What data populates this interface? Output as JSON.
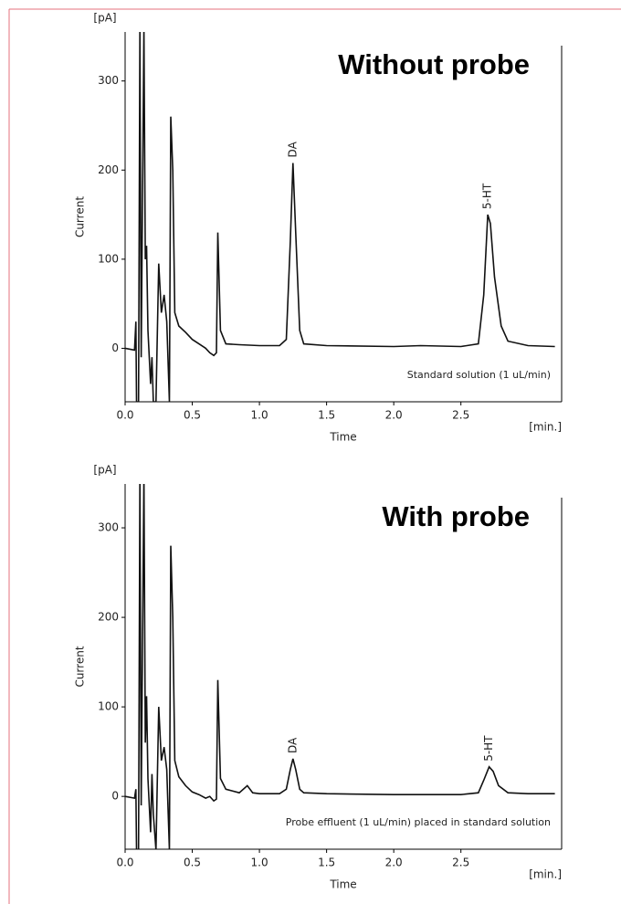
{
  "chart_data": [
    {
      "type": "line",
      "title": "Without probe",
      "annotation": "Standard solution (1 uL/min)",
      "ylabel": "Current",
      "yunit": "[pA]",
      "xlabel": "Time",
      "xunit": "[min.]",
      "color": "#111111",
      "xlim": [
        0,
        3.25
      ],
      "ylim": [
        -60,
        355
      ],
      "xticks": [
        {
          "value": 0,
          "label": "0.0"
        },
        0.5,
        {
          "value": 1,
          "label": "1.0"
        },
        1.5,
        {
          "value": 2,
          "label": "2.0"
        },
        2.5
      ],
      "yticks": [
        0,
        100,
        200,
        300
      ],
      "peaks": [
        {
          "label": "DA",
          "x": 1.25,
          "y": 208
        },
        {
          "label": "5-HT",
          "x": 2.7,
          "y": 150
        }
      ],
      "x": [
        0,
        0.07,
        0.08,
        0.085,
        0.1,
        0.11,
        0.12,
        0.14,
        0.15,
        0.16,
        0.17,
        0.19,
        0.2,
        0.21,
        0.23,
        0.25,
        0.27,
        0.29,
        0.31,
        0.33,
        0.34,
        0.355,
        0.37,
        0.4,
        0.45,
        0.5,
        0.55,
        0.6,
        0.63,
        0.66,
        0.68,
        0.69,
        0.71,
        0.75,
        0.85,
        1.0,
        1.15,
        1.2,
        1.23,
        1.25,
        1.27,
        1.3,
        1.33,
        1.5,
        2.0,
        2.2,
        2.5,
        2.63,
        2.67,
        2.7,
        2.72,
        2.75,
        2.8,
        2.85,
        3.0,
        3.2
      ],
      "values": [
        0,
        -2,
        30,
        -60,
        -60,
        360,
        -10,
        360,
        100,
        115,
        20,
        -40,
        -10,
        -60,
        -60,
        95,
        40,
        60,
        30,
        -60,
        260,
        200,
        40,
        25,
        18,
        10,
        5,
        0,
        -5,
        -8,
        -5,
        130,
        20,
        5,
        4,
        3,
        3,
        10,
        120,
        208,
        130,
        20,
        5,
        3,
        2,
        3,
        2,
        5,
        60,
        150,
        140,
        80,
        25,
        8,
        3,
        2
      ]
    },
    {
      "type": "line",
      "title": "With probe",
      "annotation": "Probe effluent (1 uL/min) placed in standard solution",
      "ylabel": "Current",
      "yunit": "[pA]",
      "xlabel": "Time",
      "xunit": "[min.]",
      "color": "#111111",
      "xlim": [
        0,
        3.25
      ],
      "ylim": [
        -59,
        349
      ],
      "xticks": [
        {
          "value": 0,
          "label": "0.0"
        },
        0.5,
        {
          "value": 1,
          "label": "1.0"
        },
        1.5,
        {
          "value": 2,
          "label": "2.0"
        },
        2.5
      ],
      "yticks": [
        0,
        100,
        200,
        300
      ],
      "peaks": [
        {
          "label": "DA",
          "x": 1.25,
          "y": 42
        },
        {
          "label": "5-HT",
          "x": 2.71,
          "y": 33
        }
      ],
      "x": [
        0,
        0.07,
        0.08,
        0.085,
        0.1,
        0.11,
        0.12,
        0.14,
        0.15,
        0.16,
        0.17,
        0.19,
        0.2,
        0.21,
        0.23,
        0.25,
        0.27,
        0.29,
        0.31,
        0.33,
        0.34,
        0.355,
        0.37,
        0.4,
        0.45,
        0.5,
        0.55,
        0.6,
        0.63,
        0.66,
        0.68,
        0.69,
        0.71,
        0.75,
        0.85,
        0.91,
        0.95,
        1.0,
        1.15,
        1.2,
        1.23,
        1.25,
        1.27,
        1.3,
        1.33,
        1.5,
        2.0,
        2.5,
        2.63,
        2.67,
        2.71,
        2.74,
        2.78,
        2.85,
        3.0,
        3.2
      ],
      "values": [
        0,
        -2,
        8,
        -60,
        -60,
        360,
        -10,
        360,
        60,
        112,
        20,
        -40,
        25,
        -20,
        -60,
        100,
        40,
        55,
        30,
        -60,
        280,
        200,
        40,
        22,
        12,
        5,
        2,
        -2,
        0,
        -5,
        -3,
        130,
        20,
        8,
        4,
        12,
        4,
        3,
        3,
        8,
        30,
        42,
        30,
        8,
        4,
        3,
        2,
        2,
        4,
        18,
        33,
        28,
        12,
        4,
        3,
        3
      ]
    }
  ]
}
